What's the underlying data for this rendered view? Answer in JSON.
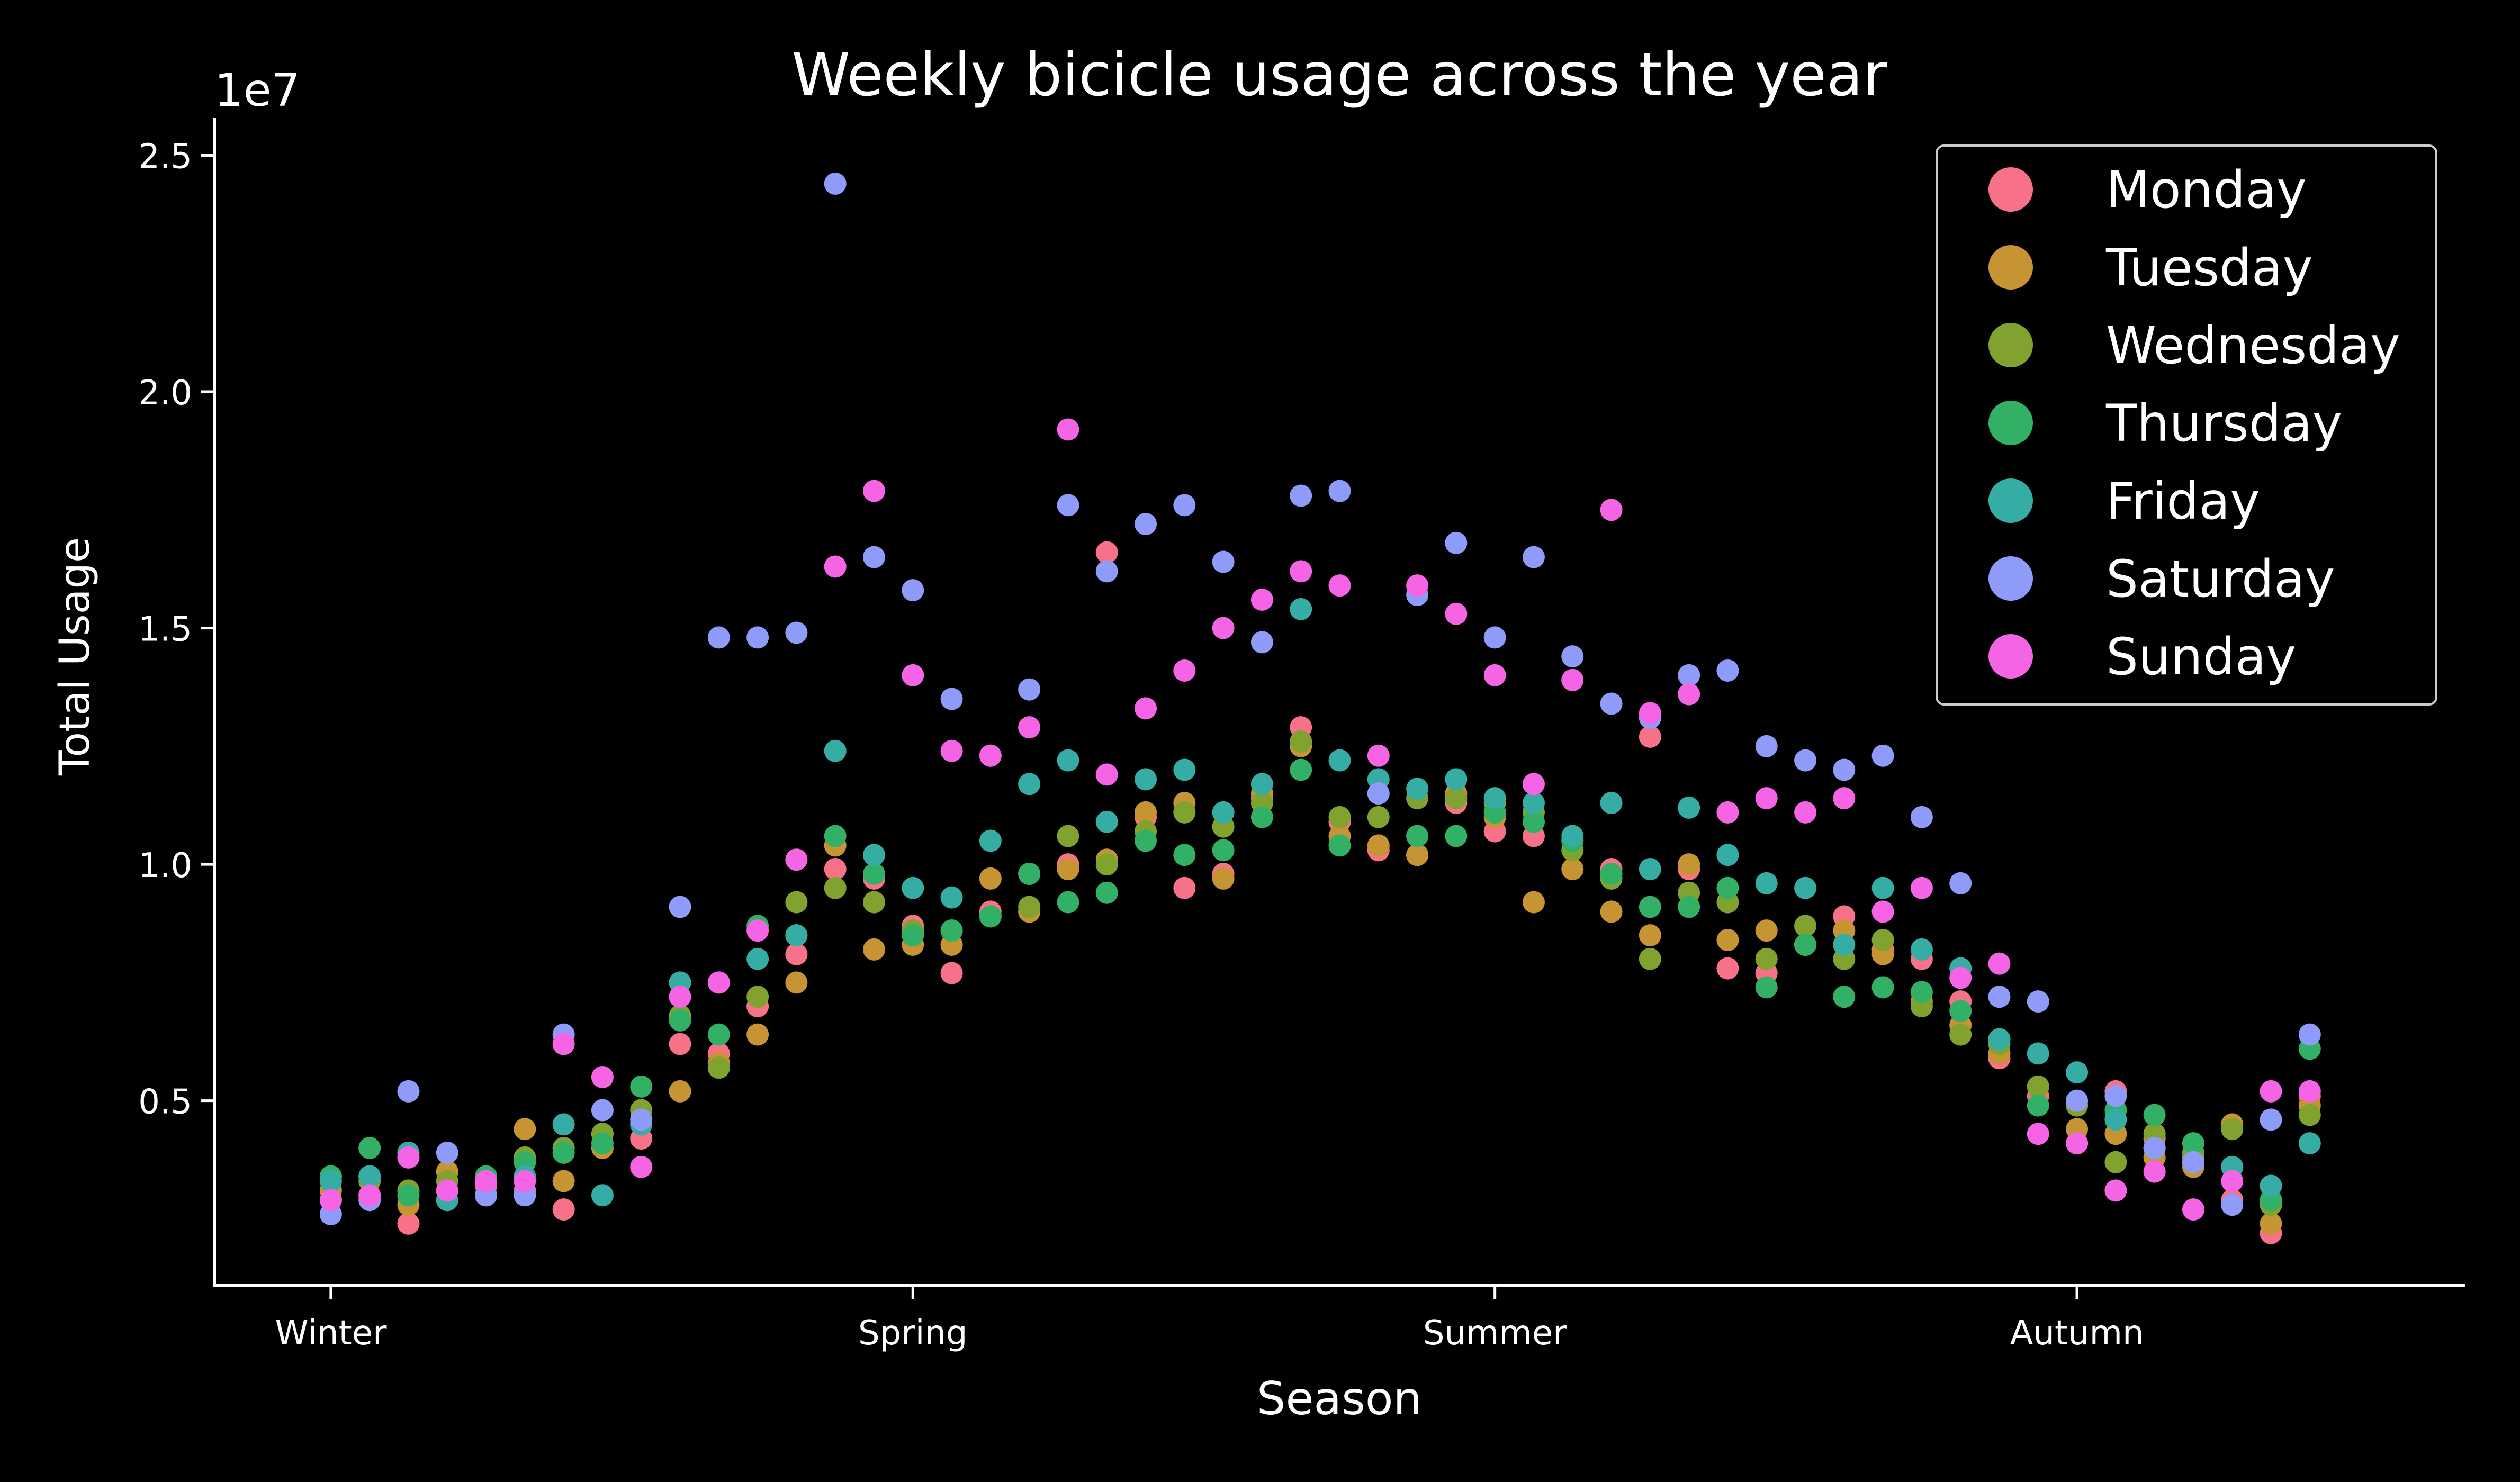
{
  "chart_data": {
    "type": "scatter",
    "title": "Weekly bicicle usage across the year",
    "xlabel": "Season",
    "ylabel": "Total Usage",
    "y_offset_label": "1e7",
    "xlim": [
      -3,
      55
    ],
    "ylim": [
      1100000,
      25800000
    ],
    "x_ticks": [
      {
        "value": 0,
        "label": "Winter"
      },
      {
        "value": 15,
        "label": "Spring"
      },
      {
        "value": 30,
        "label": "Summer"
      },
      {
        "value": 45,
        "label": "Autumn"
      }
    ],
    "y_ticks": [
      {
        "value": 5000000,
        "label": "0.5"
      },
      {
        "value": 10000000,
        "label": "1.0"
      },
      {
        "value": 15000000,
        "label": "1.5"
      },
      {
        "value": 20000000,
        "label": "2.0"
      },
      {
        "value": 25000000,
        "label": "2.5"
      }
    ],
    "grid": false,
    "legend_position": "top-right",
    "series": [
      {
        "name": "Monday",
        "color": "#f77189",
        "x": [
          0,
          1,
          2,
          3,
          4,
          5,
          6,
          7,
          8,
          9,
          10,
          11,
          12,
          13,
          14,
          15,
          16,
          17,
          18,
          19,
          20,
          21,
          22,
          23,
          24,
          25,
          26,
          27,
          28,
          29,
          30,
          31,
          32,
          33,
          34,
          35,
          36,
          37,
          38,
          39,
          40,
          41,
          42,
          43,
          44,
          45,
          46,
          47,
          48,
          49,
          50,
          51
        ],
        "values": [
          2900000,
          3000000,
          2400000,
          3100000,
          3200000,
          3100000,
          2700000,
          4300000,
          4200000,
          6200000,
          6000000,
          7000000,
          8100000,
          9900000,
          9700000,
          8700000,
          7700000,
          9000000,
          9800000,
          10000000,
          16600000,
          11000000,
          9500000,
          9800000,
          11400000,
          12900000,
          10900000,
          10300000,
          10200000,
          11300000,
          10700000,
          10600000,
          10500000,
          9900000,
          12700000,
          9900000,
          7800000,
          7700000,
          8300000,
          8900000,
          8200000,
          8000000,
          7100000,
          5900000,
          5100000,
          4900000,
          5200000,
          4200000,
          3800000,
          2900000,
          2200000,
          5100000
        ]
      },
      {
        "name": "Tuesday",
        "color": "#c69432",
        "x": [
          0,
          1,
          2,
          3,
          4,
          5,
          6,
          7,
          8,
          9,
          10,
          11,
          12,
          13,
          14,
          15,
          16,
          17,
          18,
          19,
          20,
          21,
          22,
          23,
          24,
          25,
          26,
          27,
          28,
          29,
          30,
          31,
          32,
          33,
          34,
          35,
          36,
          37,
          38,
          39,
          40,
          41,
          42,
          43,
          44,
          45,
          46,
          47,
          48,
          49,
          50,
          51
        ],
        "values": [
          3100000,
          3400000,
          2800000,
          3500000,
          3300000,
          4400000,
          3300000,
          4000000,
          4500000,
          5200000,
          5800000,
          6400000,
          7500000,
          10400000,
          8200000,
          8300000,
          8300000,
          9700000,
          9000000,
          9900000,
          10100000,
          11100000,
          11300000,
          9700000,
          11500000,
          12500000,
          10600000,
          10400000,
          10200000,
          11500000,
          11000000,
          9200000,
          9900000,
          9000000,
          8500000,
          10000000,
          8400000,
          8600000,
          8300000,
          8600000,
          8100000,
          7100000,
          6600000,
          6000000,
          5300000,
          4400000,
          4300000,
          3800000,
          3600000,
          4500000,
          2400000,
          4900000
        ]
      },
      {
        "name": "Wednesday",
        "color": "#82a230",
        "x": [
          0,
          1,
          2,
          3,
          4,
          5,
          6,
          7,
          8,
          9,
          10,
          11,
          12,
          13,
          14,
          15,
          16,
          17,
          18,
          19,
          20,
          21,
          22,
          23,
          24,
          25,
          26,
          27,
          28,
          29,
          30,
          31,
          32,
          33,
          34,
          35,
          36,
          37,
          38,
          39,
          40,
          41,
          42,
          43,
          44,
          45,
          46,
          47,
          48,
          49,
          50,
          51
        ],
        "values": [
          3400000,
          3300000,
          3100000,
          3300000,
          3300000,
          3800000,
          4000000,
          4300000,
          4800000,
          6800000,
          5700000,
          7200000,
          9200000,
          9500000,
          9200000,
          8600000,
          8600000,
          8900000,
          9100000,
          10600000,
          10000000,
          10700000,
          11100000,
          10800000,
          11300000,
          12600000,
          11000000,
          11000000,
          11400000,
          11400000,
          11300000,
          11100000,
          10300000,
          9700000,
          8000000,
          9400000,
          9200000,
          8000000,
          8700000,
          8000000,
          8400000,
          7000000,
          6400000,
          6200000,
          5300000,
          4900000,
          3700000,
          4300000,
          3900000,
          4400000,
          2800000,
          4700000
        ]
      },
      {
        "name": "Thursday",
        "color": "#32b166",
        "x": [
          0,
          1,
          2,
          3,
          4,
          5,
          6,
          7,
          8,
          9,
          10,
          11,
          12,
          13,
          14,
          15,
          16,
          17,
          18,
          19,
          20,
          21,
          22,
          23,
          24,
          25,
          26,
          27,
          28,
          29,
          30,
          31,
          32,
          33,
          34,
          35,
          36,
          37,
          38,
          39,
          40,
          41,
          42,
          43,
          44,
          45,
          46,
          47,
          48,
          49,
          50,
          51
        ],
        "values": [
          3400000,
          4000000,
          3000000,
          2900000,
          3400000,
          3700000,
          3900000,
          4100000,
          5300000,
          6700000,
          6400000,
          8700000,
          8500000,
          10600000,
          9800000,
          8500000,
          8600000,
          8900000,
          9800000,
          9200000,
          9400000,
          10500000,
          10200000,
          10300000,
          11000000,
          12000000,
          10400000,
          11500000,
          10600000,
          10600000,
          11100000,
          10900000,
          10500000,
          9800000,
          9100000,
          9100000,
          9500000,
          7400000,
          8300000,
          7200000,
          7400000,
          7300000,
          6900000,
          6300000,
          4900000,
          4100000,
          4800000,
          4700000,
          4100000,
          3600000,
          2900000,
          6100000
        ]
      },
      {
        "name": "Friday",
        "color": "#36ada4",
        "x": [
          0,
          1,
          2,
          3,
          4,
          5,
          6,
          7,
          8,
          9,
          10,
          11,
          12,
          13,
          14,
          15,
          16,
          17,
          18,
          19,
          20,
          21,
          22,
          23,
          24,
          25,
          26,
          27,
          28,
          29,
          30,
          31,
          32,
          33,
          34,
          35,
          36,
          37,
          38,
          39,
          40,
          41,
          42,
          43,
          44,
          45,
          46,
          47,
          48,
          49,
          50,
          51
        ],
        "values": [
          3300000,
          3400000,
          3900000,
          2900000,
          3000000,
          3400000,
          4500000,
          3000000,
          4500000,
          7500000,
          7500000,
          8000000,
          8500000,
          12400000,
          10200000,
          9500000,
          9300000,
          10500000,
          11700000,
          12200000,
          10900000,
          11800000,
          12000000,
          11100000,
          11700000,
          15400000,
          12200000,
          11800000,
          11600000,
          11800000,
          11400000,
          11300000,
          10600000,
          11300000,
          9900000,
          11200000,
          10200000,
          9600000,
          9500000,
          8300000,
          9500000,
          8200000,
          7800000,
          6300000,
          6000000,
          5600000,
          4600000,
          4000000,
          3700000,
          3600000,
          3200000,
          4100000
        ]
      },
      {
        "name": "Saturday",
        "color": "#8e9bf9",
        "x": [
          0,
          1,
          2,
          3,
          4,
          5,
          6,
          7,
          8,
          9,
          10,
          11,
          12,
          13,
          14,
          15,
          16,
          17,
          18,
          19,
          20,
          21,
          22,
          23,
          24,
          25,
          26,
          27,
          28,
          29,
          30,
          31,
          32,
          33,
          34,
          35,
          36,
          37,
          38,
          39,
          40,
          41,
          42,
          43,
          44,
          45,
          46,
          47,
          48,
          49,
          50,
          51
        ],
        "values": [
          2600000,
          2900000,
          5200000,
          3900000,
          3000000,
          3000000,
          6400000,
          4800000,
          4600000,
          9100000,
          14800000,
          14800000,
          14900000,
          24400000,
          16500000,
          15800000,
          13500000,
          12300000,
          13700000,
          17600000,
          16200000,
          17200000,
          17600000,
          16400000,
          14700000,
          17800000,
          17900000,
          11500000,
          15700000,
          16800000,
          14800000,
          16500000,
          14400000,
          13400000,
          13100000,
          14000000,
          14100000,
          12500000,
          12200000,
          12000000,
          12300000,
          11000000,
          9600000,
          7200000,
          7100000,
          5000000,
          5100000,
          4000000,
          3700000,
          2800000,
          4600000,
          6400000
        ]
      },
      {
        "name": "Sunday",
        "color": "#f564e4",
        "x": [
          0,
          1,
          2,
          3,
          4,
          5,
          6,
          7,
          8,
          9,
          10,
          11,
          12,
          13,
          14,
          15,
          16,
          17,
          18,
          19,
          20,
          21,
          22,
          23,
          24,
          25,
          26,
          27,
          28,
          29,
          30,
          31,
          32,
          33,
          34,
          35,
          36,
          37,
          38,
          39,
          40,
          41,
          42,
          43,
          44,
          45,
          46,
          47,
          48,
          49,
          50,
          51
        ],
        "values": [
          2900000,
          3000000,
          3800000,
          3100000,
          3300000,
          3300000,
          6200000,
          5500000,
          3600000,
          7200000,
          7500000,
          8600000,
          10100000,
          16300000,
          17900000,
          14000000,
          12400000,
          12300000,
          12900000,
          19200000,
          11900000,
          13300000,
          14100000,
          15000000,
          15600000,
          16200000,
          15900000,
          12300000,
          15900000,
          15300000,
          14000000,
          11700000,
          13900000,
          17500000,
          13200000,
          13600000,
          11100000,
          11400000,
          11100000,
          11400000,
          9000000,
          9500000,
          7600000,
          7900000,
          4300000,
          4100000,
          3100000,
          3500000,
          2700000,
          3300000,
          5200000,
          5200000
        ]
      }
    ]
  }
}
